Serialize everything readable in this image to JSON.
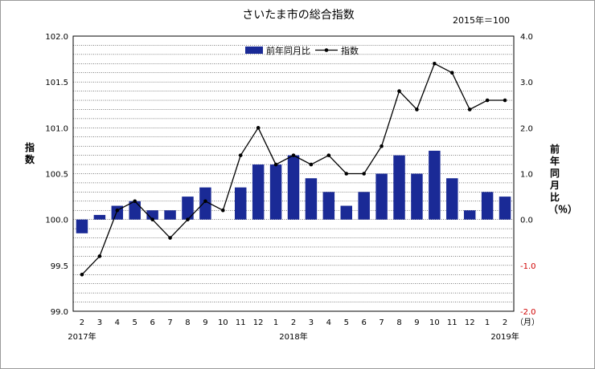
{
  "chart_data": {
    "type": "bar+line",
    "title": "さいたま市の総合指数",
    "base_note": "2015年＝100",
    "x_categories": [
      "2",
      "3",
      "4",
      "5",
      "6",
      "7",
      "8",
      "9",
      "10",
      "11",
      "12",
      "1",
      "2",
      "3",
      "4",
      "5",
      "6",
      "7",
      "8",
      "9",
      "10",
      "11",
      "12",
      "1",
      "2"
    ],
    "x_unit": "（月）",
    "year_labels": [
      "2017年",
      "2018年",
      "2019年"
    ],
    "left_axis": {
      "label": "指数",
      "range": [
        99.0,
        102.0
      ],
      "ticks": [
        "99.0",
        "99.5",
        "100.0",
        "100.5",
        "101.0",
        "101.5",
        "102.0"
      ]
    },
    "right_axis": {
      "label": "前年同月比（％）",
      "range": [
        -2.0,
        4.0
      ],
      "ticks": [
        "-2.0",
        "-1.0",
        "0.0",
        "1.0",
        "2.0",
        "3.0",
        "4.0"
      ]
    },
    "series": [
      {
        "name": "前年同月比",
        "type": "bar",
        "axis": "right",
        "color": "#1a2a96",
        "values": [
          -0.3,
          0.1,
          0.3,
          0.4,
          0.2,
          0.2,
          0.5,
          0.7,
          0.0,
          0.7,
          1.2,
          1.2,
          1.4,
          0.9,
          0.6,
          0.3,
          0.6,
          1.0,
          1.4,
          1.0,
          1.5,
          0.9,
          0.2,
          0.6,
          0.5
        ]
      },
      {
        "name": "指数",
        "type": "line",
        "axis": "left",
        "color": "#000000",
        "values": [
          99.4,
          99.6,
          100.1,
          100.2,
          100.0,
          99.8,
          100.0,
          100.2,
          100.1,
          100.7,
          101.0,
          100.6,
          100.7,
          100.6,
          100.7,
          100.5,
          100.5,
          100.8,
          101.4,
          101.2,
          101.7,
          101.6,
          101.2,
          101.3,
          101.3
        ]
      }
    ],
    "legend": [
      "前年同月比",
      "指数"
    ],
    "legend_position": "top-center",
    "grid": true,
    "colors": {
      "bar": "#1a2a96",
      "line": "#000000",
      "negative_tick": "#d00000",
      "grid": "#000000"
    }
  }
}
